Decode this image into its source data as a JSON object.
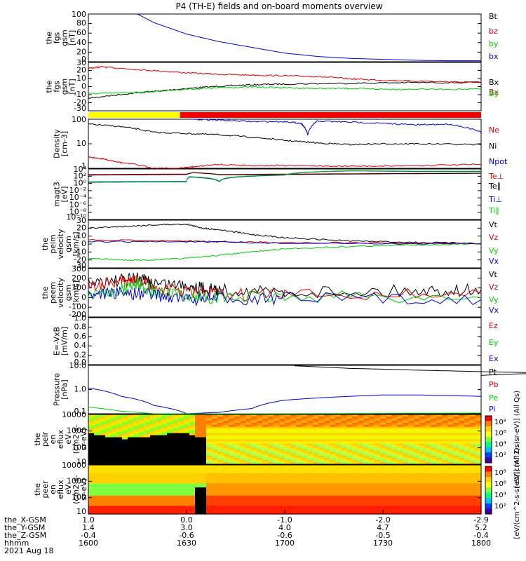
{
  "title": "P4 (TH-E) fields and on-board moments overview",
  "colors": {
    "black": "#000000",
    "red": "#dd0000",
    "green": "#00cc00",
    "blue": "#0000cc",
    "yellow": "#ffff00"
  },
  "chart_data": [
    {
      "type": "line",
      "id": "fgs_gsm_total",
      "ylabel": [
        "the",
        "fgs",
        "gsm",
        "[nT]"
      ],
      "yticks": [
        "100",
        "80",
        "60",
        "40",
        "20",
        "0"
      ],
      "ylim": [
        0,
        100
      ],
      "legend": [
        {
          "name": "Bt",
          "color": "#000000"
        },
        {
          "name": "bz",
          "color": "#dd0000"
        },
        {
          "name": "by",
          "color": "#00cc00"
        },
        {
          "name": "bx",
          "color": "#0000cc"
        }
      ],
      "series": [
        {
          "name": "bx",
          "color": "#0000cc",
          "x": [
            1615,
            1620,
            1630,
            1640,
            1650,
            1700,
            1710,
            1720,
            1730,
            1740,
            1750,
            1800
          ],
          "y": [
            100,
            82,
            58,
            42,
            30,
            18,
            11,
            7,
            5,
            3,
            2,
            2
          ]
        }
      ]
    },
    {
      "type": "line",
      "id": "fgs_gsm_comp",
      "ylabel": [
        "the",
        "fgs",
        "gsm",
        "[nT]"
      ],
      "yticks": [
        "30",
        "20",
        "10",
        "0",
        "-10",
        "-20",
        "-30"
      ],
      "ylim": [
        -35,
        30
      ],
      "legend": [
        {
          "name": "Bx",
          "color": "#000000"
        },
        {
          "name": "Bx",
          "color": "#dd0000"
        },
        {
          "name": "By",
          "color": "#00cc00"
        }
      ],
      "series": [
        {
          "name": "Bx",
          "color": "#000000",
          "x": [
            1600,
            1610,
            1620,
            1630,
            1640,
            1650,
            1700,
            1720,
            1740,
            1800
          ],
          "y": [
            -18,
            -13,
            -9,
            -5,
            -2,
            0,
            1,
            2,
            3,
            3
          ]
        },
        {
          "name": "Bx",
          "color": "#dd0000",
          "x": [
            1600,
            1604,
            1610,
            1620,
            1630,
            1640,
            1650,
            1700,
            1710,
            1720,
            1730,
            1740,
            1800
          ],
          "y": [
            22,
            24,
            22,
            19,
            16,
            14,
            13,
            12,
            11,
            8,
            6,
            5,
            3
          ]
        },
        {
          "name": "By",
          "color": "#00cc00",
          "x": [
            1600,
            1610,
            1620,
            1630,
            1640,
            1650,
            1700,
            1710,
            1720,
            1730,
            1740,
            1800
          ],
          "y": [
            -12,
            -11,
            -9,
            -6,
            -4,
            -3,
            -4,
            -5,
            -5,
            -6,
            -6,
            -6
          ]
        }
      ]
    },
    {
      "type": "line",
      "id": "density",
      "ylabel": [
        "Density",
        "[cm-3]"
      ],
      "yticks": [
        "100",
        "10",
        "1"
      ],
      "ylog": true,
      "ylim": [
        0.5,
        200
      ],
      "legend": [
        {
          "name": "Ne",
          "color": "#dd0000"
        },
        {
          "name": "Ni",
          "color": "#000000"
        },
        {
          "name": "Npot",
          "color": "#0000cc"
        }
      ],
      "series": [
        {
          "name": "Ni",
          "color": "#000000",
          "x": [
            1600,
            1610,
            1620,
            1630,
            1640,
            1650,
            1700,
            1710,
            1720,
            1730,
            1740,
            1800
          ],
          "y": [
            110,
            80,
            40,
            35,
            30,
            22,
            15,
            11,
            9,
            10,
            10,
            9
          ]
        },
        {
          "name": "Ne",
          "color": "#dd0000",
          "x": [
            1600,
            1605,
            1610,
            1620,
            1628,
            1632,
            1640,
            1650,
            1700,
            1720,
            1740,
            1800
          ],
          "y": [
            2,
            1.5,
            1,
            0.5,
            0.5,
            0.6,
            0.8,
            0.7,
            0.7,
            0.65,
            0.7,
            0.8
          ]
        },
        {
          "name": "Npot",
          "color": "#0000cc",
          "x": [
            1632,
            1640,
            1650,
            1700,
            1705,
            1707,
            1710,
            1720,
            1730,
            1740,
            1750,
            1800
          ],
          "y": [
            200,
            180,
            150,
            150,
            120,
            30,
            160,
            140,
            120,
            100,
            110,
            40
          ]
        }
      ]
    },
    {
      "type": "line",
      "id": "temperature",
      "ylabel": [
        "magt3",
        "[eV]"
      ],
      "yticks": [
        "10⁴",
        "10²",
        "10⁰",
        "10⁻²",
        "10⁻⁴",
        "10⁻⁶",
        "10⁻⁸",
        "10⁻¹⁰"
      ],
      "ylog": true,
      "ylim": [
        1e-10,
        10000.0
      ],
      "legend": [
        {
          "name": "Te⊥",
          "color": "#dd0000"
        },
        {
          "name": "Te∥",
          "color": "#000000"
        },
        {
          "name": "Ti⊥",
          "color": "#0000cc"
        },
        {
          "name": "Ti∥",
          "color": "#00cc00"
        }
      ],
      "series": [
        {
          "name": "Te⊥",
          "color": "#dd0000",
          "x": [
            1600,
            1630,
            1632,
            1640,
            1700,
            1740,
            1800
          ],
          "y": [
            300,
            400,
            1000,
            300,
            400,
            600,
            700
          ]
        },
        {
          "name": "Te∥",
          "color": "#000000",
          "x": [
            1600,
            1630,
            1632,
            1640,
            1700,
            1740,
            1800
          ],
          "y": [
            200,
            300,
            900,
            250,
            300,
            500,
            600
          ]
        },
        {
          "name": "Ti⊥",
          "color": "#0000cc",
          "x": [
            1600,
            1630,
            1631,
            1640,
            1700,
            1720,
            1740,
            1800
          ],
          "y": [
            2,
            3,
            60,
            3,
            200,
            3000,
            2000,
            2000
          ]
        },
        {
          "name": "Ti∥",
          "color": "#00cc00",
          "x": [
            1600,
            1630,
            1631,
            1640,
            1700,
            1720,
            1740,
            1800
          ],
          "y": [
            3,
            4,
            80,
            4,
            250,
            3500,
            2500,
            2500
          ]
        }
      ]
    },
    {
      "type": "line",
      "id": "peim_velocity_gsm",
      "ylabel": [
        "the",
        "peim",
        "velocity",
        "gsm",
        "[km/s]"
      ],
      "yticks": [
        "30",
        "20",
        "10",
        "0",
        "-10",
        "-20",
        "-30"
      ],
      "ylim": [
        -30,
        30
      ],
      "legend": [
        {
          "name": "Vt",
          "color": "#000000"
        },
        {
          "name": "Vz",
          "color": "#dd0000"
        },
        {
          "name": "Vy",
          "color": "#00cc00"
        },
        {
          "name": "Vx",
          "color": "#0000cc"
        }
      ],
      "series": [
        {
          "name": "Vt",
          "color": "#000000",
          "x": [
            1600,
            1610,
            1620,
            1630,
            1635,
            1640,
            1650,
            1700,
            1720,
            1740,
            1800
          ],
          "y": [
            20,
            22,
            24,
            25,
            20,
            18,
            12,
            8,
            4,
            2,
            1
          ]
        },
        {
          "name": "Vz",
          "color": "#dd0000",
          "x": [
            1600,
            1630,
            1640,
            1700,
            1740,
            1800
          ],
          "y": [
            5,
            4,
            3,
            2,
            1,
            1
          ]
        },
        {
          "name": "Vy",
          "color": "#00cc00",
          "x": [
            1600,
            1610,
            1620,
            1630,
            1640,
            1650,
            1700,
            1720,
            1740,
            1800
          ],
          "y": [
            -18,
            -20,
            -20,
            -18,
            -14,
            -10,
            -6,
            -3,
            -1,
            0
          ]
        },
        {
          "name": "Vx",
          "color": "#0000cc",
          "x": [
            1600,
            1630,
            1700,
            1800
          ],
          "y": [
            3,
            3,
            1,
            0
          ]
        }
      ]
    },
    {
      "type": "line",
      "id": "peem_velocity_gsm",
      "ylabel": [
        "the",
        "peem",
        "velocity",
        "gsm",
        "[km/s]"
      ],
      "yticks": [
        "300",
        "200",
        "100",
        "0",
        "-100",
        "-200"
      ],
      "ylim": [
        -200,
        300
      ],
      "legend": [
        {
          "name": "Vt",
          "color": "#000000"
        },
        {
          "name": "Vz",
          "color": "#dd0000"
        },
        {
          "name": "Vy",
          "color": "#00cc00"
        },
        {
          "name": "Vx",
          "color": "#0000cc"
        }
      ],
      "series": [
        {
          "name": "Vt",
          "color": "#000000",
          "x": [
            1600,
            1610,
            1615,
            1620,
            1630,
            1635,
            1640,
            1700,
            1740,
            1800
          ],
          "y": [
            160,
            180,
            200,
            150,
            130,
            100,
            80,
            60,
            70,
            80
          ]
        },
        {
          "name": "Vz",
          "color": "#dd0000",
          "x": [
            1600,
            1610,
            1615,
            1620,
            1630,
            1640,
            1700,
            1800
          ],
          "y": [
            120,
            160,
            180,
            100,
            60,
            30,
            30,
            40
          ]
        },
        {
          "name": "Vy",
          "color": "#00cc00",
          "x": [
            1600,
            1610,
            1615,
            1620,
            1630,
            1640,
            1700,
            1800
          ],
          "y": [
            20,
            80,
            150,
            60,
            10,
            0,
            10,
            0
          ]
        },
        {
          "name": "Vx",
          "color": "#0000cc",
          "x": [
            1600,
            1610,
            1620,
            1630,
            1640,
            1700,
            1800
          ],
          "y": [
            40,
            50,
            30,
            -20,
            -10,
            -10,
            -20
          ]
        }
      ]
    },
    {
      "type": "line",
      "id": "e_field",
      "ylabel": [
        "E=-VxB",
        "[mV/m]"
      ],
      "yticks": [
        "1.0",
        "0.8",
        "0.6",
        "0.4",
        "0.2",
        "0.0"
      ],
      "ylim": [
        0,
        1
      ],
      "legend": [
        {
          "name": "Ez",
          "color": "#dd0000"
        },
        {
          "name": "Ey",
          "color": "#00cc00"
        },
        {
          "name": "Ex",
          "color": "#0000cc"
        }
      ],
      "series": []
    },
    {
      "type": "line",
      "id": "pressure",
      "ylabel": [
        "Pressure",
        "[nPa]"
      ],
      "yticks": [
        "10.0",
        "1.0",
        "0.1"
      ],
      "ylog": true,
      "ylim": [
        0.05,
        30
      ],
      "legend": [
        {
          "name": "Pt",
          "color": "#000000"
        },
        {
          "name": "Pb",
          "color": "#dd0000"
        },
        {
          "name": "Pe",
          "color": "#00cc00"
        },
        {
          "name": "Pi",
          "color": "#0000cc"
        }
      ],
      "series": [
        {
          "name": "Pt",
          "color": "#000000",
          "x": [
            1703,
            1720,
            1740,
            1760,
            1780,
            1800
          ],
          "y": [
            28,
            20,
            16,
            13,
            11,
            8
          ]
        },
        {
          "name": "Pi",
          "color": "#0000cc",
          "x": [
            1600,
            1610,
            1620,
            1630,
            1640,
            1650,
            1700,
            1720,
            1730,
            1740,
            1800
          ],
          "y": [
            1.5,
            0.5,
            0.15,
            0.05,
            0.06,
            0.1,
            0.3,
            0.5,
            0.6,
            0.6,
            0.5
          ]
        },
        {
          "name": "Pe",
          "color": "#00cc00",
          "x": [
            1600,
            1610,
            1620,
            1630,
            1640,
            1700,
            1800
          ],
          "y": [
            0.12,
            0.07,
            0.05,
            0.04,
            0.045,
            0.05,
            0.055
          ]
        }
      ]
    },
    {
      "type": "heatmap",
      "id": "peir_en_eflux",
      "ylabel": [
        "the",
        "peir",
        "en",
        "eflux",
        "eV",
        "(cm2-s-",
        "sr-eV)"
      ],
      "yticks": [
        "10000",
        "1000",
        "100",
        "10"
      ],
      "ylog": true,
      "ylim": [
        5,
        20000
      ]
    },
    {
      "type": "heatmap",
      "id": "peer_en_eflux",
      "ylabel": [
        "the",
        "peer",
        "en",
        "eflux",
        "eV",
        "(cm2-s-",
        "sr-eV)"
      ],
      "yticks": [
        "10000",
        "1000",
        "100",
        "10"
      ],
      "ylog": true,
      "ylim": [
        5,
        20000
      ]
    }
  ],
  "colorbar": {
    "ticks": [
      "10⁸",
      "10⁶",
      "10⁴",
      "10²"
    ],
    "label": "[eV/(cm^2-s-sr-eV)] (All Qs)",
    "ticks2": [
      "10⁸",
      "10⁶",
      "10⁴",
      "10²"
    ],
    "label2": "[eV/(cm^2-s-sr-eV)] (All Qs)"
  },
  "xaxis": {
    "row_labels": [
      "the_X-GSM",
      "the_Y-GSM",
      "the_Z-GSM",
      "hhmm",
      "2021 Aug 18"
    ],
    "times": [
      1600,
      1630,
      1700,
      1730,
      1800
    ],
    "rows": [
      [
        "1.0",
        "0.0",
        "-1.0",
        "-2.0",
        "-2.9"
      ],
      [
        "1.4",
        "3.0",
        "4.0",
        "4.7",
        "5.2"
      ],
      [
        "-0.4",
        "-0.6",
        "-0.6",
        "-0.5",
        "-0.4"
      ],
      [
        "1600",
        "1630",
        "1700",
        "1730",
        "1800"
      ]
    ]
  },
  "flag_bar": [
    {
      "from": 1600,
      "to": 1628,
      "color": "#ffff00"
    },
    {
      "from": 1628,
      "to": 1800,
      "color": "#ee0000"
    }
  ]
}
